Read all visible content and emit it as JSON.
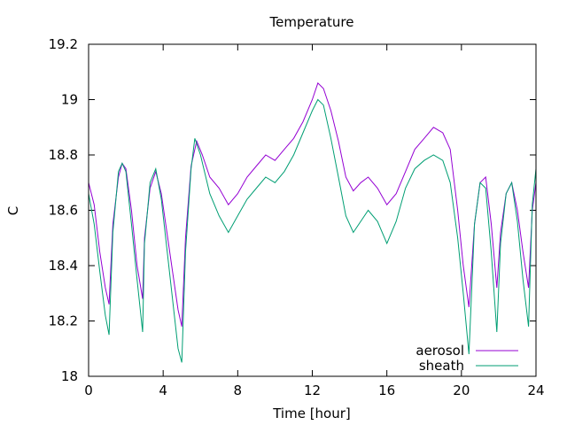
{
  "chart_data": {
    "type": "line",
    "title": "Temperature",
    "xlabel": "Time [hour]",
    "ylabel": "C",
    "xlim": [
      0,
      24
    ],
    "ylim": [
      18,
      19.2
    ],
    "x_ticks": [
      0,
      4,
      8,
      12,
      16,
      20,
      24
    ],
    "y_ticks": [
      18,
      18.2,
      18.4,
      18.6,
      18.8,
      19,
      19.2
    ],
    "x_tick_labels": [
      "0",
      "4",
      "8",
      "12",
      "16",
      "20",
      "24"
    ],
    "y_tick_labels": [
      "18",
      "18.2",
      "18.4",
      "18.6",
      "18.8",
      "19",
      "19.2"
    ],
    "grid": false,
    "legend_position": "bottom-right",
    "series": [
      {
        "name": "aerosol",
        "color": "#9400d3",
        "points": [
          [
            0,
            18.7
          ],
          [
            0.3,
            18.62
          ],
          [
            0.6,
            18.45
          ],
          [
            0.9,
            18.32
          ],
          [
            1.1,
            18.26
          ],
          [
            1.3,
            18.55
          ],
          [
            1.6,
            18.72
          ],
          [
            1.8,
            18.77
          ],
          [
            2.0,
            18.75
          ],
          [
            2.3,
            18.6
          ],
          [
            2.6,
            18.4
          ],
          [
            2.9,
            18.28
          ],
          [
            3.0,
            18.5
          ],
          [
            3.3,
            18.68
          ],
          [
            3.6,
            18.74
          ],
          [
            3.9,
            18.66
          ],
          [
            4.2,
            18.52
          ],
          [
            4.5,
            18.38
          ],
          [
            4.8,
            18.24
          ],
          [
            5.0,
            18.18
          ],
          [
            5.2,
            18.5
          ],
          [
            5.5,
            18.76
          ],
          [
            5.8,
            18.85
          ],
          [
            6.1,
            18.8
          ],
          [
            6.5,
            18.72
          ],
          [
            7.0,
            18.68
          ],
          [
            7.5,
            18.62
          ],
          [
            8.0,
            18.66
          ],
          [
            8.5,
            18.72
          ],
          [
            9.0,
            18.76
          ],
          [
            9.5,
            18.8
          ],
          [
            10.0,
            18.78
          ],
          [
            10.5,
            18.82
          ],
          [
            11.0,
            18.86
          ],
          [
            11.5,
            18.92
          ],
          [
            12.0,
            19.0
          ],
          [
            12.3,
            19.06
          ],
          [
            12.6,
            19.04
          ],
          [
            13.0,
            18.96
          ],
          [
            13.4,
            18.85
          ],
          [
            13.8,
            18.72
          ],
          [
            14.2,
            18.67
          ],
          [
            14.6,
            18.7
          ],
          [
            15.0,
            18.72
          ],
          [
            15.5,
            18.68
          ],
          [
            16.0,
            18.62
          ],
          [
            16.5,
            18.66
          ],
          [
            17.0,
            18.74
          ],
          [
            17.5,
            18.82
          ],
          [
            18.0,
            18.86
          ],
          [
            18.5,
            18.9
          ],
          [
            19.0,
            18.88
          ],
          [
            19.4,
            18.82
          ],
          [
            19.8,
            18.6
          ],
          [
            20.1,
            18.4
          ],
          [
            20.4,
            18.25
          ],
          [
            20.7,
            18.55
          ],
          [
            21.0,
            18.7
          ],
          [
            21.3,
            18.72
          ],
          [
            21.6,
            18.55
          ],
          [
            21.9,
            18.32
          ],
          [
            22.1,
            18.52
          ],
          [
            22.4,
            18.66
          ],
          [
            22.7,
            18.7
          ],
          [
            23.0,
            18.6
          ],
          [
            23.3,
            18.45
          ],
          [
            23.6,
            18.32
          ],
          [
            23.8,
            18.6
          ],
          [
            24.0,
            18.7
          ]
        ]
      },
      {
        "name": "sheath",
        "color": "#009e73",
        "points": [
          [
            0,
            18.66
          ],
          [
            0.3,
            18.55
          ],
          [
            0.6,
            18.38
          ],
          [
            0.9,
            18.22
          ],
          [
            1.1,
            18.15
          ],
          [
            1.3,
            18.52
          ],
          [
            1.6,
            18.74
          ],
          [
            1.8,
            18.77
          ],
          [
            2.0,
            18.74
          ],
          [
            2.3,
            18.55
          ],
          [
            2.6,
            18.35
          ],
          [
            2.9,
            18.16
          ],
          [
            3.0,
            18.48
          ],
          [
            3.3,
            18.7
          ],
          [
            3.6,
            18.75
          ],
          [
            3.9,
            18.64
          ],
          [
            4.2,
            18.46
          ],
          [
            4.5,
            18.28
          ],
          [
            4.8,
            18.1
          ],
          [
            5.0,
            18.05
          ],
          [
            5.2,
            18.45
          ],
          [
            5.5,
            18.75
          ],
          [
            5.7,
            18.86
          ],
          [
            6.0,
            18.8
          ],
          [
            6.5,
            18.66
          ],
          [
            7.0,
            18.58
          ],
          [
            7.5,
            18.52
          ],
          [
            8.0,
            18.58
          ],
          [
            8.5,
            18.64
          ],
          [
            9.0,
            18.68
          ],
          [
            9.5,
            18.72
          ],
          [
            10.0,
            18.7
          ],
          [
            10.5,
            18.74
          ],
          [
            11.0,
            18.8
          ],
          [
            11.5,
            18.88
          ],
          [
            12.0,
            18.96
          ],
          [
            12.3,
            19.0
          ],
          [
            12.6,
            18.98
          ],
          [
            13.0,
            18.86
          ],
          [
            13.4,
            18.72
          ],
          [
            13.8,
            18.58
          ],
          [
            14.2,
            18.52
          ],
          [
            14.6,
            18.56
          ],
          [
            15.0,
            18.6
          ],
          [
            15.5,
            18.56
          ],
          [
            16.0,
            18.48
          ],
          [
            16.5,
            18.56
          ],
          [
            17.0,
            18.68
          ],
          [
            17.5,
            18.75
          ],
          [
            18.0,
            18.78
          ],
          [
            18.5,
            18.8
          ],
          [
            19.0,
            18.78
          ],
          [
            19.4,
            18.7
          ],
          [
            19.8,
            18.5
          ],
          [
            20.1,
            18.3
          ],
          [
            20.4,
            18.08
          ],
          [
            20.7,
            18.55
          ],
          [
            21.0,
            18.7
          ],
          [
            21.3,
            18.68
          ],
          [
            21.6,
            18.45
          ],
          [
            21.9,
            18.16
          ],
          [
            22.1,
            18.48
          ],
          [
            22.4,
            18.66
          ],
          [
            22.7,
            18.7
          ],
          [
            23.0,
            18.56
          ],
          [
            23.3,
            18.35
          ],
          [
            23.6,
            18.18
          ],
          [
            23.8,
            18.62
          ],
          [
            24.0,
            18.75
          ]
        ]
      }
    ]
  }
}
